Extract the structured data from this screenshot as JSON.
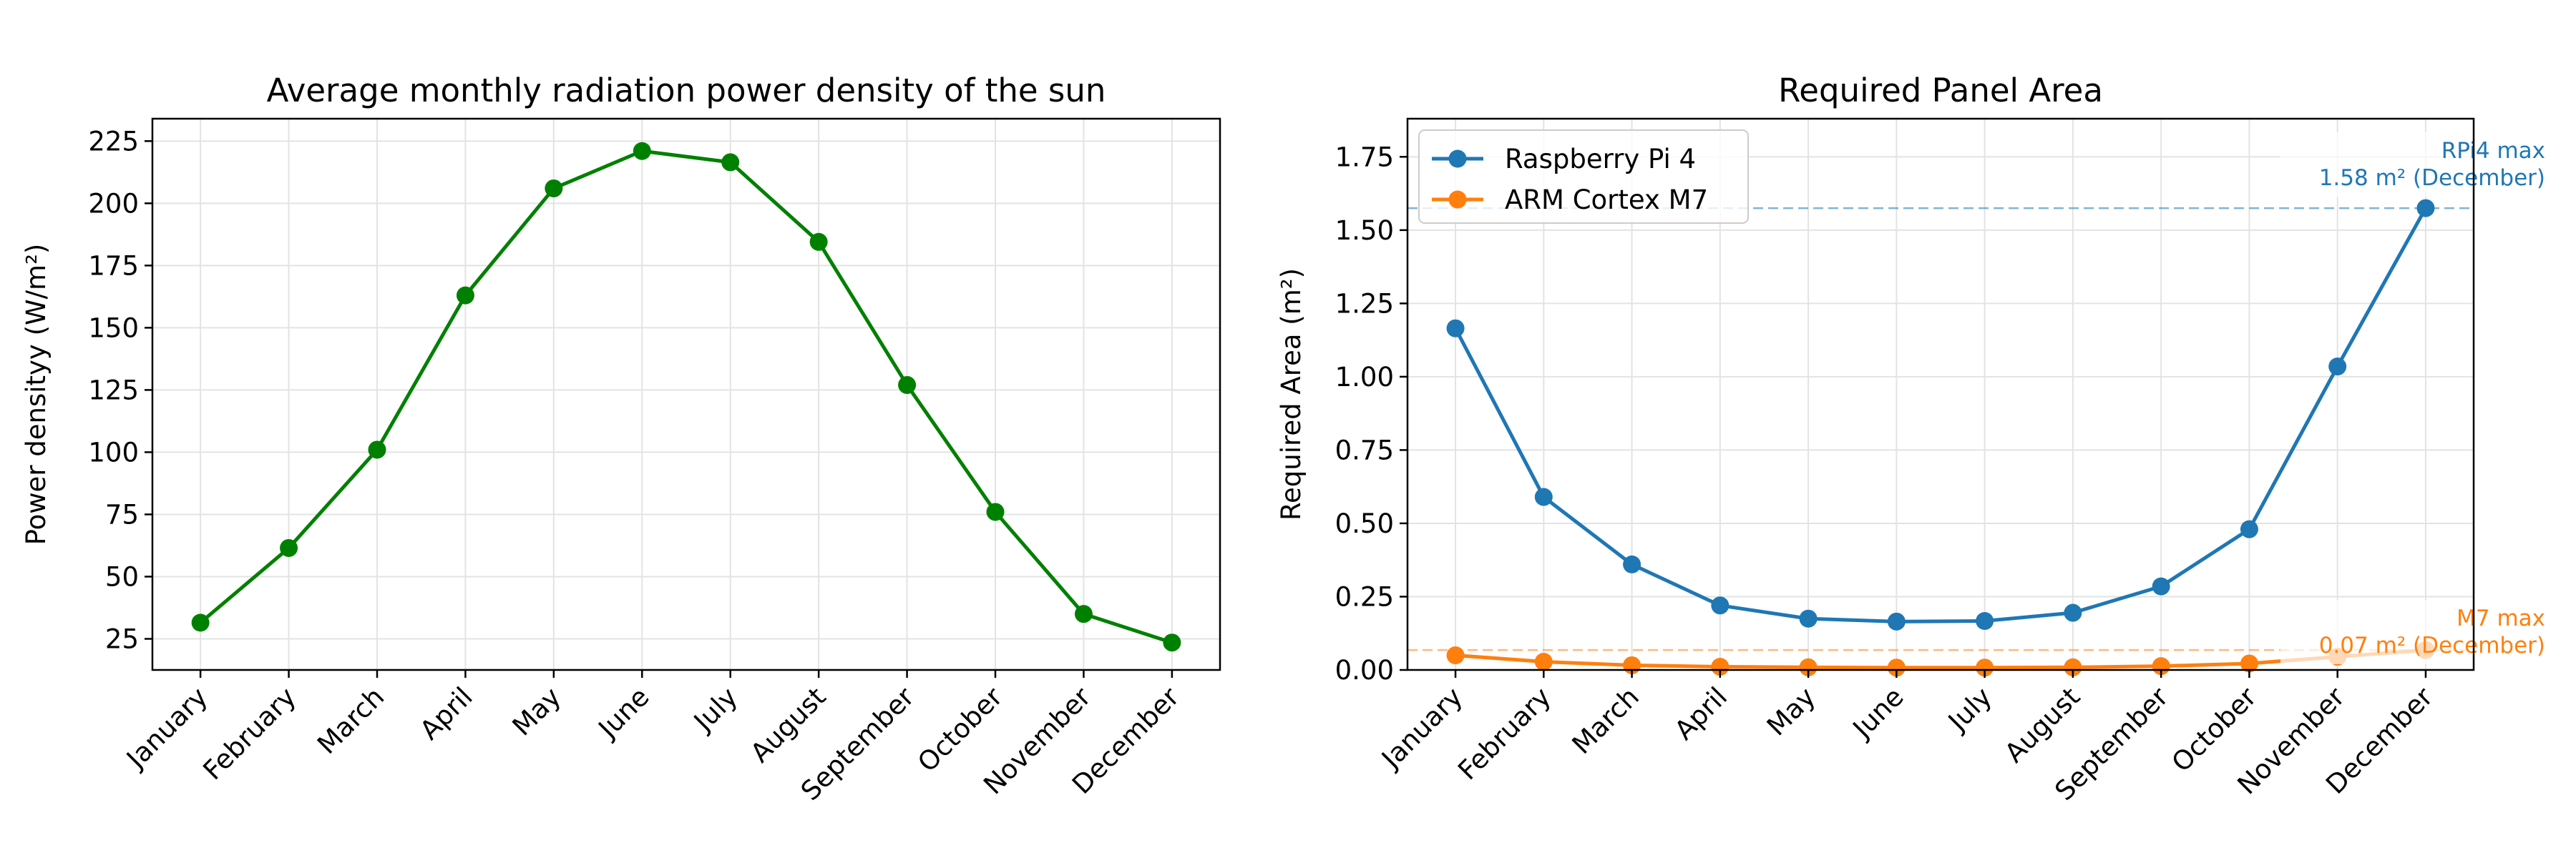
{
  "chart_data": [
    {
      "type": "line",
      "title": "Average monthly radiation power density of the sun",
      "xlabel": "",
      "ylabel": "Power densityy (W/m²)",
      "categories": [
        "January",
        "February",
        "March",
        "April",
        "May",
        "June",
        "July",
        "August",
        "September",
        "October",
        "November",
        "December"
      ],
      "series": [
        {
          "name": "Power density",
          "color": "#008000",
          "values": [
            31.5,
            61.5,
            101,
            163,
            206,
            221,
            216.5,
            184.5,
            127,
            76,
            35,
            23.5
          ]
        }
      ],
      "ylim": [
        12.5,
        234
      ],
      "yticks": [
        25,
        50,
        75,
        100,
        125,
        150,
        175,
        200,
        225
      ],
      "ytick_labels": [
        "25",
        "50",
        "75",
        "100",
        "125",
        "150",
        "175",
        "200",
        "225"
      ],
      "grid": true
    },
    {
      "type": "line",
      "title": "Required Panel Area",
      "xlabel": "",
      "ylabel": "Required Area (m²)",
      "categories": [
        "January",
        "February",
        "March",
        "April",
        "May",
        "June",
        "July",
        "August",
        "September",
        "October",
        "November",
        "December"
      ],
      "series": [
        {
          "name": "Raspberry Pi 4",
          "color": "#1f77b4",
          "values": [
            1.165,
            0.59,
            0.36,
            0.22,
            0.175,
            0.165,
            0.167,
            0.195,
            0.285,
            0.48,
            1.035,
            1.575
          ]
        },
        {
          "name": "ARM Cortex M7",
          "color": "#ff7f0e",
          "values": [
            0.05,
            0.028,
            0.016,
            0.011,
            0.009,
            0.008,
            0.008,
            0.009,
            0.013,
            0.022,
            0.045,
            0.068
          ]
        }
      ],
      "ylim": [
        0,
        1.88
      ],
      "yticks": [
        0,
        0.25,
        0.5,
        0.75,
        1.0,
        1.25,
        1.5,
        1.75
      ],
      "ytick_labels": [
        "0.00",
        "0.25",
        "0.50",
        "0.75",
        "1.00",
        "1.25",
        "1.50",
        "1.75"
      ],
      "grid": true,
      "legend_position": "top-left",
      "hlines": [
        {
          "value": 1.575,
          "color": "#1f77b4"
        },
        {
          "value": 0.068,
          "color": "#ff7f0e"
        }
      ],
      "annotations": [
        {
          "lines": [
            "RPi4 max",
            "1.58 m² (December)"
          ],
          "color": "#1f77b4",
          "anchor_month": "December"
        },
        {
          "lines": [
            "M7 max",
            "0.07 m² (December)"
          ],
          "color": "#ff7f0e",
          "anchor_month": "December"
        }
      ]
    }
  ]
}
